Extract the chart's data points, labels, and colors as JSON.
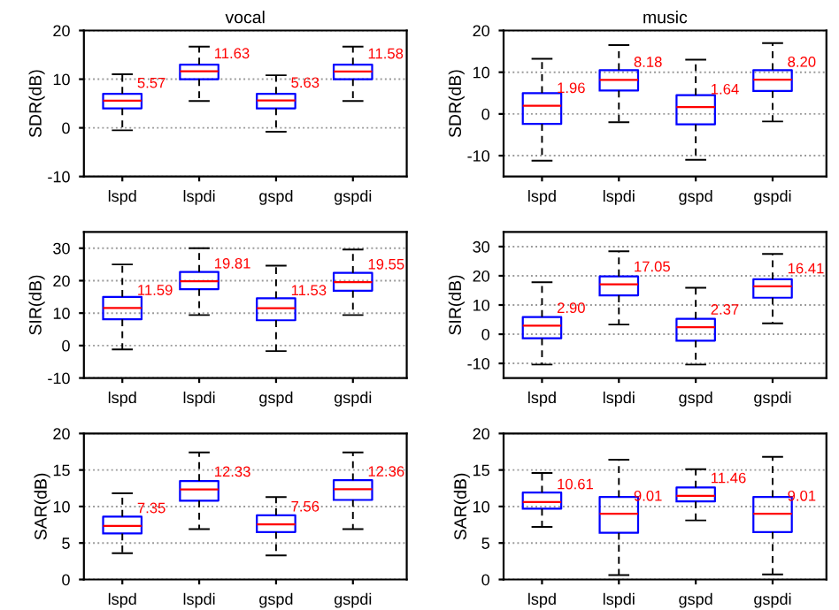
{
  "chart_data": [
    {
      "type": "box",
      "title": "vocal",
      "ylabel": "SDR(dB)",
      "categories": [
        "lspd",
        "lspdi",
        "gspd",
        "gspdi"
      ],
      "ylim": [
        -10,
        20
      ],
      "yticks": [
        -10,
        0,
        10,
        20
      ],
      "grid": "y",
      "series": [
        {
          "color": "#0000ff",
          "boxes": [
            {
              "low": -0.5,
              "q1": 4,
              "median": 5.57,
              "q3": 7,
              "high": 11
            },
            {
              "low": 5.5,
              "q1": 10,
              "median": 11.63,
              "q3": 13,
              "high": 16.7
            },
            {
              "low": -0.8,
              "q1": 4,
              "median": 5.63,
              "q3": 7,
              "high": 10.8
            },
            {
              "low": 5.5,
              "q1": 10,
              "median": 11.58,
              "q3": 13,
              "high": 16.7
            }
          ]
        }
      ],
      "annotations": [
        {
          "text": "5.57",
          "x": "lspd",
          "y": 5.57
        },
        {
          "text": "11.63",
          "x": "lspdi",
          "y": 11.63
        },
        {
          "text": "5.63",
          "x": "gspd",
          "y": 5.63
        },
        {
          "text": "11.58",
          "x": "gspdi",
          "y": 11.58
        }
      ]
    },
    {
      "type": "box",
      "title": "music",
      "ylabel": "SDR(dB)",
      "categories": [
        "lspd",
        "lspdi",
        "gspd",
        "gspdi"
      ],
      "ylim": [
        -15,
        20
      ],
      "yticks": [
        -10,
        0,
        10,
        20
      ],
      "grid": "y",
      "series": [
        {
          "color": "#0000ff",
          "boxes": [
            {
              "low": -11.2,
              "q1": -2.4,
              "median": 1.96,
              "q3": 5,
              "high": 13.2
            },
            {
              "low": -2,
              "q1": 5.6,
              "median": 8.18,
              "q3": 10.5,
              "high": 16.5
            },
            {
              "low": -11,
              "q1": -2.5,
              "median": 1.64,
              "q3": 4.5,
              "high": 13
            },
            {
              "low": -1.8,
              "q1": 5.5,
              "median": 8.2,
              "q3": 10.5,
              "high": 17
            }
          ]
        }
      ],
      "annotations": [
        {
          "text": "1.96",
          "x": "lspd",
          "y": 1.96
        },
        {
          "text": "8.18",
          "x": "lspdi",
          "y": 8.18
        },
        {
          "text": "1.64",
          "x": "gspd",
          "y": 1.64
        },
        {
          "text": "8.20",
          "x": "gspdi",
          "y": 8.2
        }
      ]
    },
    {
      "type": "box",
      "ylabel": "SIR(dB)",
      "categories": [
        "lspd",
        "lspdi",
        "gspd",
        "gspdi"
      ],
      "ylim": [
        -10,
        35
      ],
      "yticks": [
        -10,
        0,
        10,
        20,
        30
      ],
      "grid": "y",
      "series": [
        {
          "color": "#0000ff",
          "boxes": [
            {
              "low": -1.2,
              "q1": 8.1,
              "median": 11.59,
              "q3": 15,
              "high": 25
            },
            {
              "low": 9.4,
              "q1": 17.4,
              "median": 19.81,
              "q3": 22.7,
              "high": 30
            },
            {
              "low": -1.7,
              "q1": 7.8,
              "median": 11.53,
              "q3": 14.6,
              "high": 24.6
            },
            {
              "low": 9.4,
              "q1": 16.9,
              "median": 19.55,
              "q3": 22.4,
              "high": 29.6
            }
          ]
        }
      ],
      "annotations": [
        {
          "text": "11.59",
          "x": "lspd",
          "y": 11.59
        },
        {
          "text": "19.81",
          "x": "lspdi",
          "y": 19.81
        },
        {
          "text": "11.53",
          "x": "gspd",
          "y": 11.53
        },
        {
          "text": "19.55",
          "x": "gspdi",
          "y": 19.55
        }
      ]
    },
    {
      "type": "box",
      "ylabel": "SIR(dB)",
      "categories": [
        "lspd",
        "lspdi",
        "gspd",
        "gspdi"
      ],
      "ylim": [
        -15,
        35
      ],
      "yticks": [
        -10,
        0,
        10,
        20,
        30
      ],
      "grid": "y",
      "series": [
        {
          "color": "#0000ff",
          "boxes": [
            {
              "low": -10.4,
              "q1": -1.4,
              "median": 2.9,
              "q3": 5.9,
              "high": 17.8
            },
            {
              "low": 3.3,
              "q1": 13.3,
              "median": 17.05,
              "q3": 19.8,
              "high": 28.4
            },
            {
              "low": -10.4,
              "q1": -2.2,
              "median": 2.37,
              "q3": 5.3,
              "high": 15.9
            },
            {
              "low": 3.7,
              "q1": 12.5,
              "median": 16.41,
              "q3": 18.8,
              "high": 27.5
            }
          ]
        }
      ],
      "annotations": [
        {
          "text": "2.90",
          "x": "lspd",
          "y": 2.9
        },
        {
          "text": "17.05",
          "x": "lspdi",
          "y": 17.05
        },
        {
          "text": "2.37",
          "x": "gspd",
          "y": 2.37
        },
        {
          "text": "16.41",
          "x": "gspdi",
          "y": 16.41
        }
      ]
    },
    {
      "type": "box",
      "ylabel": "SAR(dB)",
      "categories": [
        "lspd",
        "lspdi",
        "gspd",
        "gspdi"
      ],
      "ylim": [
        0,
        20
      ],
      "yticks": [
        0,
        5,
        10,
        15,
        20
      ],
      "grid": "y",
      "series": [
        {
          "color": "#0000ff",
          "boxes": [
            {
              "low": 3.6,
              "q1": 6.3,
              "median": 7.35,
              "q3": 8.6,
              "high": 11.8
            },
            {
              "low": 6.9,
              "q1": 10.8,
              "median": 12.33,
              "q3": 13.5,
              "high": 17.4
            },
            {
              "low": 3.3,
              "q1": 6.5,
              "median": 7.56,
              "q3": 8.8,
              "high": 11.3
            },
            {
              "low": 6.9,
              "q1": 10.9,
              "median": 12.36,
              "q3": 13.6,
              "high": 17.4
            }
          ]
        }
      ],
      "annotations": [
        {
          "text": "7.35",
          "x": "lspd",
          "y": 7.35
        },
        {
          "text": "12.33",
          "x": "lspdi",
          "y": 12.33
        },
        {
          "text": "7.56",
          "x": "gspd",
          "y": 7.56
        },
        {
          "text": "12.36",
          "x": "gspdi",
          "y": 12.36
        }
      ]
    },
    {
      "type": "box",
      "ylabel": "SAR(dB)",
      "categories": [
        "lspd",
        "lspdi",
        "gspd",
        "gspdi"
      ],
      "ylim": [
        0,
        20
      ],
      "yticks": [
        0,
        5,
        10,
        15,
        20
      ],
      "grid": "y",
      "series": [
        {
          "color": "#0000ff",
          "boxes": [
            {
              "low": 7.2,
              "q1": 9.7,
              "median": 10.61,
              "q3": 11.9,
              "high": 14.6
            },
            {
              "low": 0.6,
              "q1": 6.4,
              "median": 9.01,
              "q3": 11.3,
              "high": 16.4
            },
            {
              "low": 8.1,
              "q1": 10.7,
              "median": 11.46,
              "q3": 12.6,
              "high": 15.1
            },
            {
              "low": 0.7,
              "q1": 6.5,
              "median": 9.01,
              "q3": 11.3,
              "high": 16.8
            }
          ]
        }
      ],
      "annotations": [
        {
          "text": "10.61",
          "x": "lspd",
          "y": 10.61
        },
        {
          "text": "9.01",
          "x": "lspdi",
          "y": 9.01
        },
        {
          "text": "11.46",
          "x": "gspd",
          "y": 11.46
        },
        {
          "text": "9.01",
          "x": "gspdi",
          "y": 9.01
        }
      ]
    }
  ]
}
